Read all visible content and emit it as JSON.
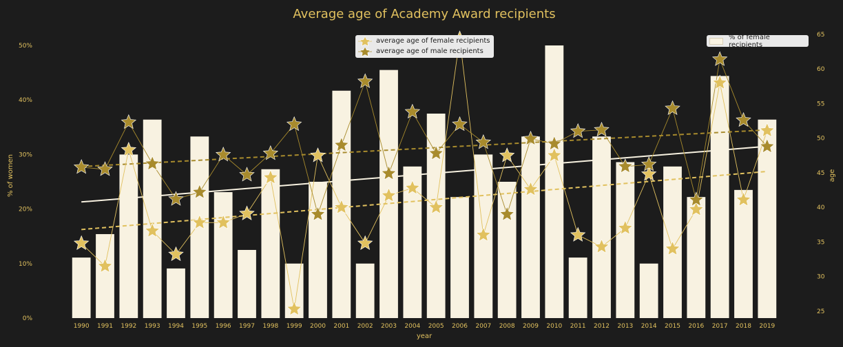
{
  "chart_data": {
    "type": "bar",
    "title": "Average age of Academy Award recipients",
    "xlabel": "year",
    "ylabel_left": "% of women",
    "ylabel_right": "age",
    "categories": [
      "1990",
      "1991",
      "1992",
      "1993",
      "1994",
      "1995",
      "1996",
      "1997",
      "1998",
      "1999",
      "2000",
      "2001",
      "2002",
      "2003",
      "2004",
      "2005",
      "2006",
      "2007",
      "2008",
      "2009",
      "2010",
      "2011",
      "2012",
      "2013",
      "2014",
      "2015",
      "2016",
      "2017",
      "2018",
      "2019"
    ],
    "left_ylim": [
      0,
      0.5
    ],
    "left_ticks": [
      "0%",
      "10%",
      "20%",
      "30%",
      "40%",
      "50%"
    ],
    "right_ylim": [
      24,
      65
    ],
    "right_ticks": [
      "25",
      "30",
      "35",
      "40",
      "45",
      "50",
      "55",
      "60",
      "65"
    ],
    "bar_series": {
      "name": "% of female recipients",
      "color": "#f8f2e1",
      "values": [
        0.111,
        0.154,
        0.3,
        0.364,
        0.091,
        0.333,
        0.231,
        0.125,
        0.273,
        0.1,
        0.25,
        0.417,
        0.1,
        0.455,
        0.278,
        0.375,
        0.222,
        0.3,
        0.25,
        0.333,
        0.5,
        0.111,
        0.333,
        0.286,
        0.1,
        0.278,
        0.222,
        0.444,
        0.235,
        0.364
      ]
    },
    "line_series": [
      {
        "name": "average age of female recipients",
        "color": "#e1c15f",
        "values": [
          34.8,
          31.5,
          48.3,
          36.6,
          33.2,
          37.8,
          37.8,
          39.1,
          44.3,
          25.3,
          47.5,
          40.0,
          34.8,
          41.7,
          42.8,
          40.0,
          64.4,
          36.0,
          47.5,
          42.6,
          47.5,
          36.0,
          34.3,
          37.0,
          44.8,
          34.0,
          39.7,
          58.0,
          41.1,
          51.1
        ]
      },
      {
        "name": "average age of male recipients",
        "color": "#a88b2d",
        "values": [
          45.8,
          45.5,
          52.3,
          46.3,
          41.2,
          42.2,
          47.6,
          44.7,
          47.8,
          52.0,
          39.0,
          49.0,
          58.2,
          44.9,
          53.8,
          47.8,
          52.0,
          49.4,
          39.0,
          49.9,
          49.2,
          51.0,
          51.2,
          45.9,
          46.2,
          54.3,
          41.1,
          61.4,
          52.6,
          48.8
        ]
      }
    ],
    "trend_lines": [
      {
        "series": "% of female recipients",
        "style": "solid",
        "axis": "left",
        "color": "#f8f2e1",
        "start": 0.213,
        "end": 0.315
      },
      {
        "series": "average age of female recipients",
        "style": "dashed",
        "axis": "right",
        "color": "#e1c15f",
        "start": 36.8,
        "end": 45.2
      },
      {
        "series": "average age of male recipients",
        "style": "dashed",
        "axis": "right",
        "color": "#a88b2d",
        "start": 45.9,
        "end": 51.2
      }
    ],
    "legends": {
      "lines": "top-center",
      "bars": "top-right"
    },
    "colors": {
      "background": "#1c1c1c",
      "text": "#e1c15f",
      "tick": "#e1c15f"
    }
  }
}
